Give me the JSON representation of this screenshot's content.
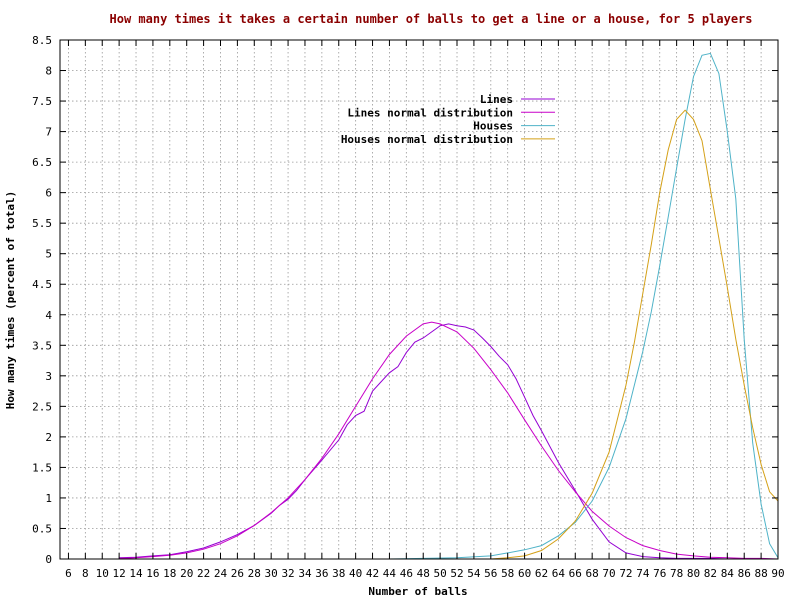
{
  "chart_data": {
    "type": "line",
    "title": "How many times it takes a certain number of balls to get a line or a house, for 5 players",
    "xlabel": "Number of balls",
    "ylabel": "How many times (percent of total)",
    "xlim": [
      5,
      90
    ],
    "ylim": [
      0,
      8.5
    ],
    "x_ticks": [
      6,
      8,
      10,
      12,
      14,
      16,
      18,
      20,
      22,
      24,
      26,
      28,
      30,
      32,
      34,
      36,
      38,
      40,
      42,
      44,
      46,
      48,
      50,
      52,
      54,
      56,
      58,
      60,
      62,
      64,
      66,
      68,
      70,
      72,
      74,
      76,
      78,
      80,
      82,
      84,
      86,
      88,
      90
    ],
    "y_ticks": [
      0,
      0.5,
      1,
      1.5,
      2,
      2.5,
      3,
      3.5,
      4,
      4.5,
      5,
      5.5,
      6,
      6.5,
      7,
      7.5,
      8,
      8.5
    ],
    "grid": true,
    "legend_position": "top-center",
    "series": [
      {
        "name": "Lines",
        "color": "#9400d3",
        "x": [
          12,
          14,
          16,
          18,
          20,
          22,
          24,
          26,
          28,
          30,
          31,
          32,
          33,
          34,
          36,
          38,
          39,
          40,
          41,
          42,
          43,
          44,
          45,
          46,
          47,
          48,
          49,
          50,
          51,
          52,
          53,
          54,
          55,
          56,
          57,
          58,
          59,
          60,
          61,
          62,
          64,
          66,
          68,
          70,
          72,
          74,
          76,
          78,
          80,
          82,
          84,
          86,
          88,
          90
        ],
        "y": [
          0.02,
          0.03,
          0.05,
          0.07,
          0.12,
          0.18,
          0.28,
          0.4,
          0.55,
          0.75,
          0.88,
          0.98,
          1.12,
          1.3,
          1.62,
          1.95,
          2.2,
          2.35,
          2.42,
          2.75,
          2.9,
          3.05,
          3.15,
          3.38,
          3.55,
          3.62,
          3.72,
          3.82,
          3.85,
          3.82,
          3.8,
          3.75,
          3.62,
          3.48,
          3.32,
          3.18,
          2.95,
          2.65,
          2.35,
          2.1,
          1.58,
          1.12,
          0.65,
          0.28,
          0.1,
          0.04,
          0.02,
          0.01,
          0.01,
          0.01,
          0.0,
          0.0,
          0.0,
          0.0
        ]
      },
      {
        "name": "Lines normal distribution",
        "color": "#c800c8",
        "x": [
          12,
          14,
          16,
          18,
          20,
          22,
          24,
          26,
          28,
          30,
          32,
          34,
          36,
          38,
          40,
          42,
          44,
          46,
          48,
          49,
          50,
          52,
          54,
          56,
          58,
          60,
          62,
          64,
          66,
          68,
          70,
          72,
          74,
          76,
          78,
          80,
          82,
          84,
          86,
          88,
          90
        ],
        "y": [
          0.01,
          0.02,
          0.04,
          0.06,
          0.1,
          0.16,
          0.25,
          0.38,
          0.55,
          0.76,
          1.0,
          1.3,
          1.65,
          2.05,
          2.5,
          2.95,
          3.35,
          3.65,
          3.85,
          3.88,
          3.85,
          3.72,
          3.45,
          3.1,
          2.72,
          2.28,
          1.85,
          1.45,
          1.1,
          0.78,
          0.54,
          0.35,
          0.22,
          0.14,
          0.08,
          0.05,
          0.03,
          0.02,
          0.01,
          0.01,
          0.0
        ]
      },
      {
        "name": "Houses",
        "color": "#4fb3c8",
        "x": [
          44,
          48,
          52,
          56,
          58,
          60,
          62,
          64,
          66,
          68,
          70,
          72,
          74,
          75,
          76,
          77,
          78,
          79,
          80,
          81,
          82,
          83,
          84,
          85,
          86,
          87,
          88,
          89,
          90
        ],
        "y": [
          0.0,
          0.01,
          0.02,
          0.05,
          0.1,
          0.15,
          0.22,
          0.38,
          0.6,
          0.95,
          1.5,
          2.3,
          3.4,
          4.05,
          4.8,
          5.6,
          6.4,
          7.2,
          7.9,
          8.25,
          8.28,
          7.95,
          7.0,
          5.9,
          3.6,
          1.9,
          0.9,
          0.25,
          0.02
        ]
      },
      {
        "name": "Houses normal distribution",
        "color": "#d4a017",
        "x": [
          56,
          58,
          60,
          62,
          64,
          66,
          68,
          70,
          72,
          73,
          74,
          75,
          76,
          77,
          78,
          79,
          80,
          81,
          82,
          83,
          84,
          85,
          86,
          87,
          88,
          89,
          90
        ],
        "y": [
          0.0,
          0.02,
          0.05,
          0.14,
          0.33,
          0.62,
          1.08,
          1.75,
          2.85,
          3.55,
          4.35,
          5.15,
          6.0,
          6.7,
          7.2,
          7.35,
          7.2,
          6.85,
          6.05,
          5.25,
          4.45,
          3.6,
          2.85,
          2.15,
          1.55,
          1.1,
          0.95
        ]
      }
    ]
  }
}
